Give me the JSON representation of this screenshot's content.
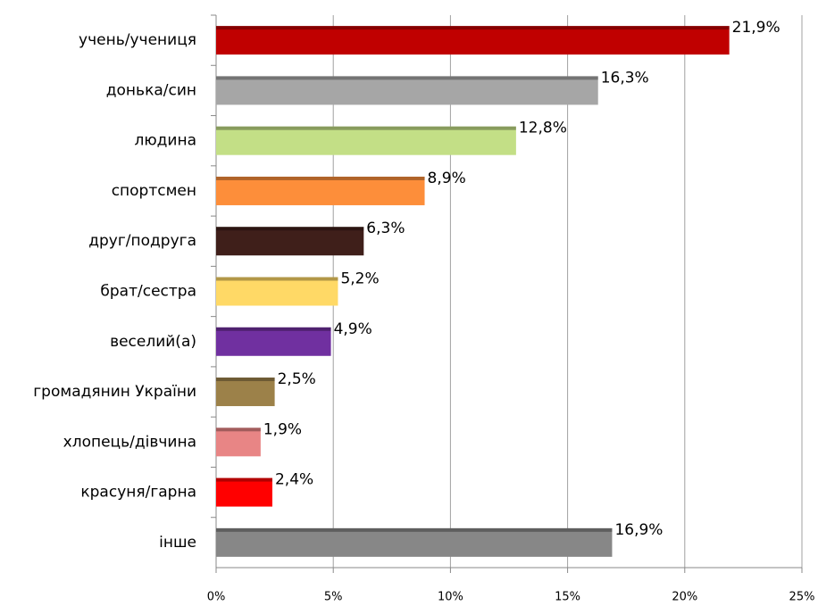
{
  "chart_data": {
    "type": "barh",
    "categories": [
      "учень/учениця",
      "донька/син",
      "людина",
      "спортсмен",
      "друг/подруга",
      "брат/сестра",
      "веселий(а)",
      "громадянин України",
      "хлопець/дівчина",
      "красуня/гарна",
      "інше"
    ],
    "values": [
      21.9,
      16.3,
      12.8,
      8.9,
      6.3,
      5.2,
      4.9,
      2.5,
      1.9,
      2.4,
      16.9
    ],
    "value_labels": [
      "21,9%",
      "16,3%",
      "12,8%",
      "8,9%",
      "6,3%",
      "5,2%",
      "4,9%",
      "2,5%",
      "1,9%",
      "2,4%",
      "16,9%"
    ],
    "colors": [
      "#c00000",
      "#a6a6a6",
      "#c3df86",
      "#fd8e3a",
      "#3f1f1a",
      "#ffd966",
      "#7030a0",
      "#9c8149",
      "#e88585",
      "#ff0000",
      "#878787"
    ],
    "xlim": [
      0,
      25
    ],
    "xticks": [
      {
        "value": 0,
        "label": "0%"
      },
      {
        "value": 5,
        "label": "5%"
      },
      {
        "value": 10,
        "label": "10%"
      },
      {
        "value": 15,
        "label": "15%"
      },
      {
        "value": 20,
        "label": "20%"
      },
      {
        "value": 25,
        "label": "25%"
      }
    ],
    "grid": true
  }
}
